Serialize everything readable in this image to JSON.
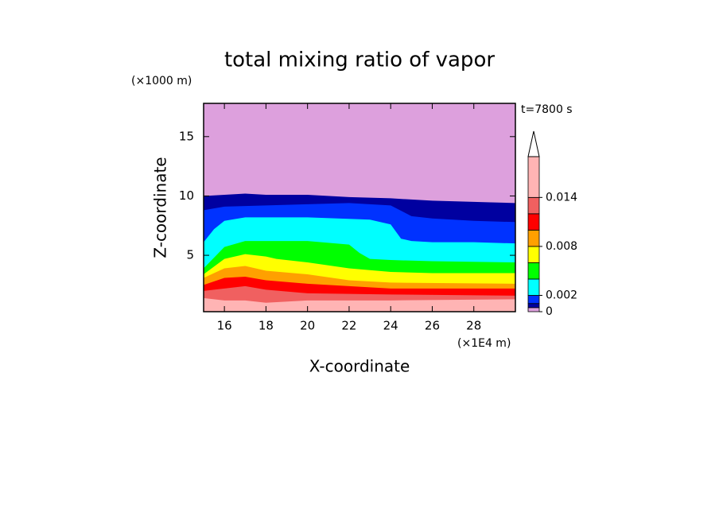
{
  "chart_data": {
    "type": "contour",
    "title": "total mixing ratio of vapor",
    "subtitle": "t=7800 s",
    "xlabel": "X-coordinate",
    "ylabel": "Z-coordinate",
    "xunit": "(×1E4 m)",
    "yunit": "(×1000 m)",
    "xlim": [
      15,
      30
    ],
    "ylim": [
      0.25,
      17.8
    ],
    "xticks": [
      16,
      18,
      20,
      22,
      24,
      26,
      28
    ],
    "yticks": [
      5,
      10,
      15
    ],
    "levels": [
      0,
      0.0005,
      0.001,
      0.002,
      0.004,
      0.006,
      0.008,
      0.01,
      0.012,
      0.014,
      0.019
    ],
    "colors": [
      "#dda0dd",
      "#0000a0",
      "#0032ff",
      "#00ffff",
      "#00ff00",
      "#ffff00",
      "#ffa000",
      "#ff0000",
      "#f06060",
      "#ffb4b4"
    ],
    "colorbar_ticks": [
      0,
      0.002,
      0.008,
      0.014
    ],
    "contours": [
      {
        "x": [
          15,
          16,
          17,
          18,
          20,
          22,
          24,
          26,
          28,
          30
        ],
        "z": [
          10.0,
          10.1,
          10.2,
          10.1,
          10.1,
          9.9,
          9.8,
          9.6,
          9.5,
          9.4
        ]
      },
      {
        "x": [
          15,
          16,
          18,
          20,
          22,
          24,
          25,
          26,
          28,
          30
        ],
        "z": [
          8.8,
          9.1,
          9.2,
          9.3,
          9.4,
          9.2,
          8.3,
          8.1,
          7.9,
          7.8
        ]
      },
      {
        "x": [
          15,
          15.5,
          16,
          17,
          20,
          23,
          24,
          24.5,
          25,
          26,
          28,
          30
        ],
        "z": [
          6.1,
          7.2,
          7.9,
          8.2,
          8.2,
          8.0,
          7.6,
          6.4,
          6.2,
          6.1,
          6.1,
          6.0
        ]
      },
      {
        "x": [
          15,
          16,
          17,
          20,
          22,
          22.5,
          23,
          24,
          26,
          30
        ],
        "z": [
          3.9,
          5.7,
          6.2,
          6.2,
          5.9,
          5.2,
          4.7,
          4.6,
          4.5,
          4.4
        ]
      },
      {
        "x": [
          15,
          16,
          17,
          18,
          18.5,
          20,
          22,
          24,
          26,
          30
        ],
        "z": [
          3.4,
          4.7,
          5.1,
          4.9,
          4.7,
          4.4,
          3.9,
          3.6,
          3.5,
          3.5
        ]
      },
      {
        "x": [
          15,
          16,
          17,
          18,
          20,
          22,
          24,
          30
        ],
        "z": [
          3.1,
          3.9,
          4.1,
          3.7,
          3.4,
          2.9,
          2.7,
          2.6
        ]
      },
      {
        "x": [
          15,
          16,
          17,
          18,
          20,
          24,
          30
        ],
        "z": [
          2.5,
          3.1,
          3.2,
          2.9,
          2.6,
          2.2,
          2.2
        ]
      },
      {
        "x": [
          15,
          16,
          17,
          18,
          20,
          24,
          30
        ],
        "z": [
          2.0,
          2.2,
          2.4,
          2.1,
          1.8,
          1.7,
          1.6
        ]
      },
      {
        "x": [
          15,
          16,
          17,
          18,
          20,
          24,
          30
        ],
        "z": [
          1.4,
          1.2,
          1.2,
          1.0,
          1.2,
          1.2,
          1.3
        ]
      }
    ]
  }
}
